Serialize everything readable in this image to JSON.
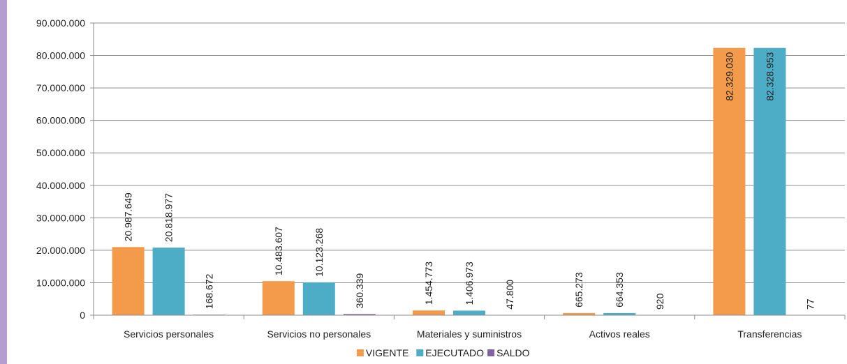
{
  "chart_data": {
    "type": "bar",
    "categories": [
      "Servicios personales",
      "Servicios no personales",
      "Materiales y suministros",
      "Activos reales",
      "Transferencias"
    ],
    "series": [
      {
        "name": "VIGENTE",
        "color": "#f39a4b",
        "values": [
          20987649,
          10483607,
          1454773,
          665273,
          82329030
        ],
        "labels": [
          "20.987.649",
          "10.483.607",
          "1.454.773",
          "665.273",
          "82.329.030"
        ]
      },
      {
        "name": "EJECUTADO",
        "color": "#4eadc6",
        "values": [
          20818977,
          10123268,
          1406973,
          664353,
          82328953
        ],
        "labels": [
          "20.818.977",
          "10.123.268",
          "1.406.973",
          "664.353",
          "82.328.953"
        ]
      },
      {
        "name": "SALDO",
        "color": "#8064a2",
        "values": [
          168672,
          360339,
          47800,
          920,
          77
        ],
        "labels": [
          "168.672",
          "360.339",
          "47.800",
          "920",
          "77"
        ]
      }
    ],
    "ylim": [
      0,
      90000000
    ],
    "yticks": [
      0,
      10000000,
      20000000,
      30000000,
      40000000,
      50000000,
      60000000,
      70000000,
      80000000,
      90000000
    ],
    "ytick_labels": [
      "0",
      "10.000.000",
      "20.000.000",
      "30.000.000",
      "40.000.000",
      "50.000.000",
      "60.000.000",
      "70.000.000",
      "80.000.000",
      "90.000.000"
    ],
    "grid": true,
    "legend": "bottom",
    "title": "",
    "xlabel": "",
    "ylabel": ""
  }
}
